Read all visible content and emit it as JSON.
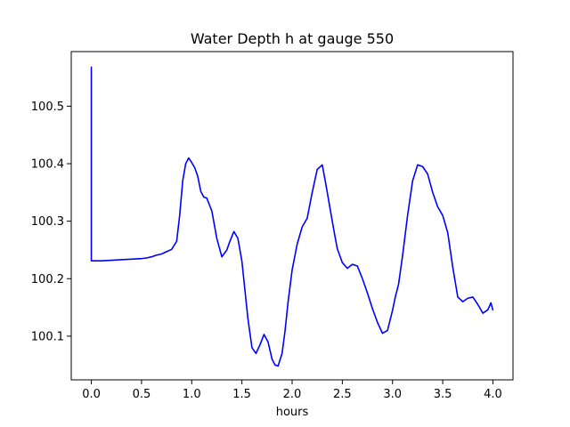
{
  "chart_data": {
    "type": "line",
    "title": "Water Depth h at gauge 550",
    "xlabel": "hours",
    "ylabel": "",
    "xlim": [
      -0.2,
      4.2
    ],
    "ylim": [
      100.024,
      100.595
    ],
    "grid": false,
    "xticks": [
      0.0,
      0.5,
      1.0,
      1.5,
      2.0,
      2.5,
      3.0,
      3.5,
      4.0
    ],
    "xtick_labels": [
      "0.0",
      "0.5",
      "1.0",
      "1.5",
      "2.0",
      "2.5",
      "3.0",
      "3.5",
      "4.0"
    ],
    "yticks": [
      100.1,
      100.2,
      100.3,
      100.4,
      100.5
    ],
    "ytick_labels": [
      "100.1",
      "100.2",
      "100.3",
      "100.4",
      "100.5"
    ],
    "line_color": "#0000ff",
    "series": [
      {
        "x": [
          0.0,
          0.0,
          0.0,
          0.1,
          0.2,
          0.3,
          0.4,
          0.5,
          0.55,
          0.6,
          0.65,
          0.7,
          0.75,
          0.8,
          0.85,
          0.88,
          0.91,
          0.94,
          0.97,
          1.0,
          1.03,
          1.06,
          1.09,
          1.12,
          1.15,
          1.2,
          1.25,
          1.3,
          1.35,
          1.38,
          1.42,
          1.46,
          1.5,
          1.53,
          1.56,
          1.6,
          1.64,
          1.68,
          1.72,
          1.76,
          1.8,
          1.83,
          1.86,
          1.9,
          1.93,
          1.96,
          2.0,
          2.05,
          2.1,
          2.15,
          2.2,
          2.25,
          2.3,
          2.33,
          2.36,
          2.39,
          2.42,
          2.45,
          2.5,
          2.55,
          2.6,
          2.65,
          2.7,
          2.75,
          2.8,
          2.85,
          2.9,
          2.95,
          3.0,
          3.03,
          3.06,
          3.1,
          3.15,
          3.2,
          3.25,
          3.3,
          3.35,
          3.4,
          3.45,
          3.5,
          3.55,
          3.6,
          3.65,
          3.7,
          3.75,
          3.8,
          3.85,
          3.9,
          3.95,
          3.98,
          4.0
        ],
        "y": [
          100.231,
          100.568,
          100.231,
          100.231,
          100.232,
          100.233,
          100.234,
          100.235,
          100.236,
          100.238,
          100.241,
          100.243,
          100.247,
          100.251,
          100.265,
          100.31,
          100.37,
          100.4,
          100.41,
          100.402,
          100.393,
          100.378,
          100.352,
          100.342,
          100.34,
          100.318,
          100.27,
          100.238,
          100.25,
          100.265,
          100.282,
          100.27,
          100.23,
          100.18,
          100.13,
          100.08,
          100.07,
          100.085,
          100.103,
          100.09,
          100.06,
          100.05,
          100.048,
          100.07,
          100.11,
          100.16,
          100.215,
          100.26,
          100.29,
          100.305,
          100.35,
          100.39,
          100.398,
          100.37,
          100.34,
          100.31,
          100.28,
          100.252,
          100.228,
          100.218,
          100.225,
          100.222,
          100.2,
          100.175,
          100.148,
          100.124,
          100.105,
          100.11,
          100.145,
          100.17,
          100.19,
          100.24,
          100.31,
          100.37,
          100.398,
          100.395,
          100.382,
          100.35,
          100.325,
          100.31,
          100.28,
          100.22,
          100.168,
          100.16,
          100.166,
          100.168,
          100.155,
          100.14,
          100.146,
          100.158,
          100.145
        ]
      }
    ]
  }
}
